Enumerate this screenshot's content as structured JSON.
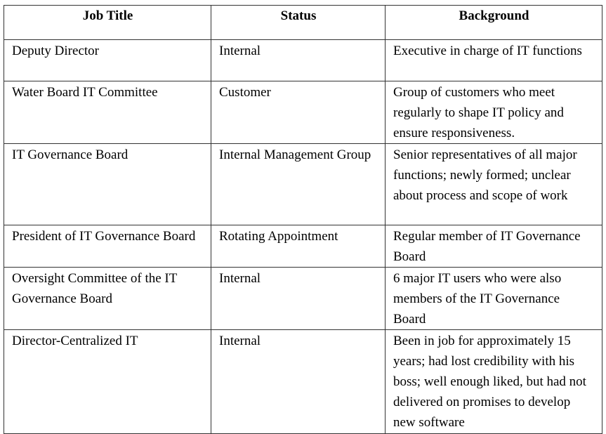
{
  "table": {
    "headers": [
      "Job Title",
      "Status",
      "Background"
    ],
    "rows": [
      [
        "Deputy Director",
        "Internal",
        "Executive in charge of IT functions"
      ],
      [
        "Water Board IT Committee",
        "Customer",
        "Group of customers who meet regularly to shape IT policy and ensure responsiveness."
      ],
      [
        "IT Governance Board",
        "Internal Management Group",
        "Senior representatives of all major functions; newly formed; unclear about process and scope of work"
      ],
      [
        "President of IT Governance Board",
        "Rotating Appointment",
        "Regular member of IT Governance Board"
      ],
      [
        "Oversight Committee of the IT Governance Board",
        "Internal",
        "6 major IT users who were also members of the IT Governance Board"
      ],
      [
        "Director-Centralized IT",
        "Internal",
        "Been in job for approximately 15 years; had lost credibility with his boss; well enough liked, but had not delivered on promises to develop new software"
      ]
    ]
  }
}
